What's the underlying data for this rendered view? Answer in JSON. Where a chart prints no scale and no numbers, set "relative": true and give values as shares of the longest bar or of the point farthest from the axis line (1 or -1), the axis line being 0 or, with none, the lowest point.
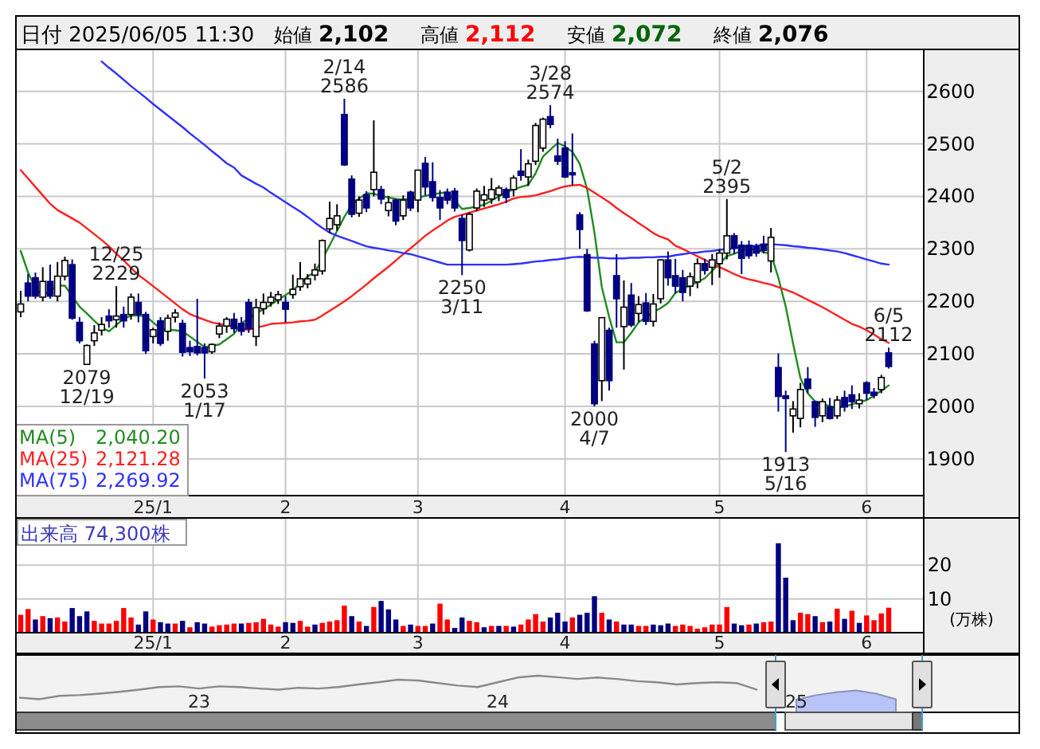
{
  "chart_data": [
    {
      "type": "candlestick",
      "title": "日付 2025/06/05 11:30",
      "annotations": [
        "始値 2,102",
        "高値 2,112",
        "安値 2,072",
        "終値 2,076",
        {
          "text": "12/25\n2229",
          "y": 2229
        },
        {
          "text": "2079\n12/19",
          "y": 2079
        },
        {
          "text": "2053\n1/17",
          "y": 2053
        },
        {
          "text": "2/14\n2586",
          "y": 2586
        },
        {
          "text": "2250\n3/11",
          "y": 2250
        },
        {
          "text": "3/28\n2574",
          "y": 2574
        },
        {
          "text": "2000\n4/7",
          "y": 2000
        },
        {
          "text": "5/2\n2395",
          "y": 2395
        },
        {
          "text": "1913\n5/16",
          "y": 1913
        },
        {
          "text": "6/5\n2112",
          "y": 2112
        }
      ],
      "categories": [
        null,
        null,
        null,
        null,
        null,
        null,
        null,
        null,
        null,
        null,
        null,
        null,
        null,
        null,
        null,
        null,
        null,
        null,
        "25/1",
        null,
        null,
        null,
        null,
        null,
        null,
        null,
        null,
        null,
        null,
        null,
        null,
        null,
        null,
        null,
        null,
        null,
        "2",
        null,
        null,
        null,
        null,
        null,
        null,
        null,
        null,
        null,
        null,
        null,
        null,
        null,
        null,
        null,
        null,
        null,
        "3",
        null,
        null,
        null,
        null,
        null,
        null,
        null,
        null,
        null,
        null,
        null,
        null,
        null,
        null,
        null,
        null,
        null,
        null,
        null,
        "4",
        null,
        null,
        null,
        null,
        null,
        null,
        null,
        null,
        null,
        null,
        null,
        null,
        null,
        null,
        null,
        null,
        null,
        null,
        null,
        null,
        "5",
        null,
        null,
        null,
        null,
        null,
        null,
        null,
        null,
        null,
        null,
        null,
        null,
        null,
        null,
        null,
        null,
        null,
        null,
        null,
        "6",
        null,
        null,
        null
      ],
      "ylim": [
        1830,
        2680
      ],
      "yticks": [
        1900,
        2000,
        2100,
        2200,
        2300,
        2400,
        2500,
        2600
      ],
      "grid": true,
      "legend": "bottom left",
      "ohlc": [
        [
          2180,
          2220,
          2170,
          2195
        ],
        [
          2235,
          2252,
          2200,
          2210
        ],
        [
          2245,
          2255,
          2205,
          2210
        ],
        [
          2208,
          2265,
          2200,
          2238
        ],
        [
          2238,
          2270,
          2205,
          2210
        ],
        [
          2210,
          2275,
          2200,
          2248
        ],
        [
          2248,
          2285,
          2240,
          2278
        ],
        [
          2270,
          2280,
          2165,
          2168
        ],
        [
          2160,
          2170,
          2120,
          2125
        ],
        [
          2080,
          2118,
          2079,
          2116
        ],
        [
          2125,
          2155,
          2115,
          2140
        ],
        [
          2145,
          2170,
          2135,
          2156
        ],
        [
          2172,
          2185,
          2150,
          2163
        ],
        [
          2165,
          2229,
          2150,
          2172
        ],
        [
          2175,
          2190,
          2150,
          2163
        ],
        [
          2175,
          2215,
          2165,
          2208
        ],
        [
          2198,
          2215,
          2160,
          2175
        ],
        [
          2175,
          2180,
          2100,
          2106
        ],
        [
          2133,
          2150,
          2120,
          2146
        ],
        [
          2163,
          2170,
          2115,
          2120
        ],
        [
          2143,
          2175,
          2125,
          2168
        ],
        [
          2170,
          2185,
          2160,
          2178
        ],
        [
          2158,
          2165,
          2095,
          2103
        ],
        [
          2112,
          2125,
          2096,
          2104
        ],
        [
          2114,
          2205,
          2097,
          2102
        ],
        [
          2112,
          2120,
          2053,
          2102
        ],
        [
          2104,
          2120,
          2100,
          2118
        ],
        [
          2138,
          2160,
          2130,
          2153
        ],
        [
          2153,
          2170,
          2140,
          2166
        ],
        [
          2166,
          2178,
          2140,
          2148
        ],
        [
          2158,
          2170,
          2135,
          2143
        ],
        [
          2198,
          2205,
          2140,
          2148
        ],
        [
          2133,
          2205,
          2115,
          2188
        ],
        [
          2186,
          2215,
          2175,
          2198
        ],
        [
          2198,
          2218,
          2190,
          2208
        ],
        [
          2203,
          2220,
          2195,
          2213
        ],
        [
          2198,
          2210,
          2160,
          2185
        ],
        [
          2213,
          2251,
          2205,
          2223
        ],
        [
          2228,
          2275,
          2220,
          2243
        ],
        [
          2233,
          2252,
          2225,
          2243
        ],
        [
          2250,
          2272,
          2240,
          2260
        ],
        [
          2258,
          2318,
          2251,
          2316
        ],
        [
          2338,
          2390,
          2330,
          2358
        ],
        [
          2346,
          2385,
          2335,
          2363
        ],
        [
          2556,
          2586,
          2458,
          2460
        ],
        [
          2433,
          2440,
          2360,
          2366
        ],
        [
          2368,
          2400,
          2361,
          2393
        ],
        [
          2403,
          2410,
          2370,
          2378
        ],
        [
          2413,
          2545,
          2400,
          2446
        ],
        [
          2413,
          2420,
          2385,
          2395
        ],
        [
          2373,
          2401,
          2362,
          2388
        ],
        [
          2393,
          2396,
          2345,
          2353
        ],
        [
          2363,
          2402,
          2355,
          2393
        ],
        [
          2408,
          2411,
          2372,
          2378
        ],
        [
          2393,
          2450,
          2370,
          2450
        ],
        [
          2463,
          2475,
          2402,
          2418
        ],
        [
          2428,
          2465,
          2390,
          2398
        ],
        [
          2398,
          2412,
          2355,
          2378
        ],
        [
          2408,
          2415,
          2385,
          2393
        ],
        [
          2410,
          2416,
          2371,
          2378
        ],
        [
          2358,
          2365,
          2250,
          2316
        ],
        [
          2298,
          2370,
          2295,
          2366
        ],
        [
          2378,
          2415,
          2372,
          2410
        ],
        [
          2393,
          2420,
          2380,
          2403
        ],
        [
          2395,
          2435,
          2386,
          2413
        ],
        [
          2403,
          2421,
          2391,
          2416
        ],
        [
          2413,
          2417,
          2387,
          2398
        ],
        [
          2413,
          2440,
          2400,
          2435
        ],
        [
          2448,
          2490,
          2430,
          2440
        ],
        [
          2437,
          2470,
          2420,
          2462
        ],
        [
          2467,
          2540,
          2460,
          2535
        ],
        [
          2492,
          2550,
          2485,
          2547
        ],
        [
          2552,
          2574,
          2530,
          2537
        ],
        [
          2477,
          2510,
          2460,
          2467
        ],
        [
          2492,
          2505,
          2435,
          2437
        ],
        [
          2445,
          2520,
          2421,
          2441
        ],
        [
          2365,
          2370,
          2300,
          2337
        ],
        [
          2289,
          2300,
          2180,
          2182
        ],
        [
          2119,
          2125,
          2000,
          2005
        ],
        [
          2049,
          2170,
          2010,
          2169
        ],
        [
          2145,
          2150,
          2030,
          2049
        ],
        [
          2249,
          2290,
          2150,
          2205
        ],
        [
          2152,
          2240,
          2070,
          2189
        ],
        [
          2212,
          2235,
          2151,
          2155
        ],
        [
          2177,
          2210,
          2160,
          2194
        ],
        [
          2197,
          2216,
          2155,
          2162
        ],
        [
          2162,
          2214,
          2152,
          2195
        ],
        [
          2205,
          2280,
          2196,
          2279
        ],
        [
          2279,
          2295,
          2230,
          2245
        ],
        [
          2249,
          2281,
          2215,
          2229
        ],
        [
          2245,
          2260,
          2200,
          2217
        ],
        [
          2229,
          2255,
          2210,
          2247
        ],
        [
          2237,
          2282,
          2225,
          2272
        ],
        [
          2272,
          2281,
          2251,
          2259
        ],
        [
          2265,
          2290,
          2231,
          2279
        ],
        [
          2272,
          2300,
          2245,
          2292
        ],
        [
          2292,
          2395,
          2280,
          2325
        ],
        [
          2325,
          2330,
          2290,
          2302
        ],
        [
          2307,
          2315,
          2252,
          2282
        ],
        [
          2307,
          2316,
          2281,
          2287
        ],
        [
          2305,
          2310,
          2285,
          2292
        ],
        [
          2309,
          2325,
          2291,
          2297
        ],
        [
          2277,
          2340,
          2255,
          2322
        ],
        [
          2074,
          2101,
          1990,
          2019
        ],
        [
          2020,
          2030,
          1913,
          2015
        ],
        [
          1982,
          2010,
          1950,
          1995
        ],
        [
          1977,
          2045,
          1960,
          2032
        ],
        [
          2052,
          2075,
          2025,
          2034
        ],
        [
          2009,
          2011,
          1961,
          1979
        ],
        [
          1982,
          2015,
          1970,
          2009
        ],
        [
          1999,
          2016,
          1975,
          1977
        ],
        [
          1982,
          2020,
          1976,
          2012
        ],
        [
          2017,
          2030,
          1990,
          1999
        ],
        [
          2022,
          2040,
          1995,
          2009
        ],
        [
          2005,
          2025,
          1996,
          2012
        ],
        [
          2045,
          2048,
          2012,
          2025
        ],
        [
          2027,
          2035,
          2015,
          2021
        ],
        [
          2032,
          2060,
          2025,
          2055
        ],
        [
          2102,
          2112,
          2072,
          2076
        ]
      ],
      "series": [
        {
          "type": "line",
          "name": "MA(5) 2,040.20",
          "color": "#228b22",
          "values": [
            2296,
            2255,
            2225,
            2212,
            2220,
            2230,
            2230,
            2210,
            2190,
            2177,
            2163,
            2150,
            2143,
            2155,
            2167,
            2173,
            2173,
            2172,
            2160,
            2148,
            2146,
            2145,
            2143,
            2133,
            2123,
            2113,
            2115,
            2118,
            2128,
            2138,
            2158,
            2168,
            2177,
            2185,
            2194,
            2203,
            2212,
            2221,
            2234,
            2247,
            2256,
            2280,
            2307,
            2334,
            2361,
            2384,
            2396,
            2406,
            2405,
            2401,
            2398,
            2395,
            2394,
            2396,
            2398,
            2401,
            2404,
            2406,
            2408,
            2392,
            2376,
            2378,
            2381,
            2384,
            2392,
            2400,
            2408,
            2413,
            2418,
            2422,
            2444,
            2476,
            2489,
            2502,
            2495,
            2485,
            2462,
            2414,
            2331,
            2227,
            2170,
            2122,
            2122,
            2140,
            2160,
            2170,
            2180,
            2187,
            2197,
            2216,
            2224,
            2230,
            2237,
            2244,
            2258,
            2272,
            2286,
            2291,
            2296,
            2301,
            2298,
            2294,
            2290,
            2245,
            2190,
            2120,
            2054,
            2025,
            2009,
            2005,
            2000,
            1997,
            2000,
            2004,
            2008,
            2012,
            2020,
            2030,
            2040
          ]
        },
        {
          "type": "line",
          "name": "MA(25) 2,121.28",
          "color": "#ff2020",
          "values": [
            2450,
            2434,
            2418,
            2402,
            2386,
            2374,
            2366,
            2358,
            2350,
            2339,
            2328,
            2317,
            2305,
            2291,
            2278,
            2264,
            2250,
            2240,
            2229,
            2218,
            2207,
            2196,
            2185,
            2176,
            2170,
            2165,
            2160,
            2157,
            2155,
            2152,
            2147,
            2146,
            2150,
            2153,
            2157,
            2158,
            2159,
            2160,
            2162,
            2163,
            2165,
            2173,
            2182,
            2191,
            2200,
            2210,
            2221,
            2232,
            2244,
            2255,
            2266,
            2278,
            2290,
            2301,
            2313,
            2325,
            2335,
            2344,
            2354,
            2361,
            2365,
            2369,
            2373,
            2377,
            2381,
            2385,
            2390,
            2396,
            2399,
            2400,
            2402,
            2406,
            2410,
            2415,
            2419,
            2421,
            2422,
            2416,
            2407,
            2398,
            2389,
            2378,
            2368,
            2359,
            2349,
            2340,
            2330,
            2323,
            2318,
            2306,
            2300,
            2293,
            2286,
            2279,
            2272,
            2265,
            2259,
            2252,
            2246,
            2242,
            2239,
            2235,
            2232,
            2227,
            2222,
            2217,
            2210,
            2203,
            2196,
            2189,
            2181,
            2173,
            2165,
            2157,
            2152,
            2145,
            2137,
            2128,
            2121
          ]
        },
        {
          "type": "line",
          "name": "MA(75) 2,269.92",
          "color": "#3030ff",
          "values": [
            null,
            null,
            null,
            null,
            null,
            null,
            null,
            null,
            null,
            null,
            null,
            2657,
            2645,
            2634,
            2622,
            2610,
            2599,
            2588,
            2576,
            2565,
            2554,
            2543,
            2532,
            2520,
            2509,
            2498,
            2486,
            2475,
            2463,
            2455,
            2440,
            2432,
            2424,
            2417,
            2407,
            2398,
            2389,
            2380,
            2371,
            2361,
            2350,
            2340,
            2331,
            2325,
            2320,
            2315,
            2310,
            2305,
            2302,
            2300,
            2297,
            2295,
            2292,
            2290,
            2286,
            2282,
            2278,
            2274,
            2270,
            2270,
            2270,
            2270,
            2270,
            2270,
            2270,
            2270,
            2270,
            2271,
            2272,
            2274,
            2276,
            2277,
            2279,
            2280,
            2282,
            2284,
            2285,
            2284,
            2283,
            2283,
            2282,
            2282,
            2282,
            2283,
            2283,
            2284,
            2284,
            2285,
            2285,
            2288,
            2290,
            2292,
            2293,
            2295,
            2296,
            2298,
            2300,
            2301,
            2303,
            2305,
            2306,
            2308,
            2309,
            2308,
            2307,
            2305,
            2304,
            2302,
            2301,
            2299,
            2297,
            2295,
            2292,
            2288,
            2284,
            2280,
            2276,
            2272,
            2270
          ]
        }
      ]
    },
    {
      "type": "bar",
      "title": "出来高 74,300株",
      "ylabel": "(万株)",
      "categories": [
        null,
        null,
        null,
        null,
        null,
        null,
        null,
        null,
        null,
        null,
        null,
        null,
        null,
        null,
        null,
        null,
        null,
        null,
        "25/1",
        null,
        null,
        null,
        null,
        null,
        null,
        null,
        null,
        null,
        null,
        null,
        null,
        null,
        null,
        null,
        null,
        null,
        "2",
        null,
        null,
        null,
        null,
        null,
        null,
        null,
        null,
        null,
        null,
        null,
        null,
        null,
        null,
        null,
        null,
        null,
        "3",
        null,
        null,
        null,
        null,
        null,
        null,
        null,
        null,
        null,
        null,
        null,
        null,
        null,
        null,
        null,
        null,
        null,
        null,
        null,
        "4",
        null,
        null,
        null,
        null,
        null,
        null,
        null,
        null,
        null,
        null,
        null,
        null,
        null,
        null,
        null,
        null,
        null,
        null,
        null,
        null,
        "5",
        null,
        null,
        null,
        null,
        null,
        null,
        null,
        null,
        null,
        null,
        null,
        null,
        null,
        null,
        null,
        null,
        null,
        null,
        null,
        "6",
        null,
        null,
        null
      ],
      "ylim": [
        0,
        34
      ],
      "yticks": [
        10,
        20
      ],
      "grid": true,
      "series": [
        {
          "color": "#ff0000",
          "values": [
            5.3,
            7,
            null,
            4.9,
            null,
            4.5,
            3.3,
            null,
            null,
            null,
            3.5,
            2.7,
            2.7,
            3.5,
            7.3,
            4.5,
            null,
            null,
            3.9,
            null,
            null,
            2.7,
            null,
            1.6,
            null,
            null,
            1.8,
            2.2,
            2.4,
            2.7,
            null,
            2.9,
            3.1,
            4.1,
            2.4,
            1.8,
            null,
            null,
            3.5,
            1.8,
            null,
            2.9,
            3.3,
            3.7,
            8,
            null,
            3.3,
            null,
            7.6,
            null,
            null,
            null,
            2,
            null,
            2,
            2,
            null,
            8.6,
            3.9,
            null,
            null,
            3.5,
            3.1,
            null,
            2,
            null,
            2,
            null,
            2.4,
            3.9,
            5.5,
            3.3,
            null,
            null,
            null,
            4.5,
            null,
            null,
            null,
            5.9,
            null,
            3.3,
            null,
            null,
            2,
            2,
            null,
            null,
            null,
            2,
            2.4,
            2,
            1.2,
            1.6,
            2.4,
            2.4,
            7.6,
            null,
            null,
            2.4,
            null,
            3.1,
            3.3,
            null,
            null,
            null,
            5.9,
            5.5,
            null,
            3.1,
            null,
            7.1,
            null,
            6.5,
            null,
            5.1,
            3.7,
            5.7,
            7.4
          ]
        },
        {
          "color": "#000080",
          "values": [
            null,
            null,
            3.9,
            null,
            4.3,
            null,
            null,
            7.3,
            4.9,
            6.3,
            null,
            null,
            null,
            null,
            null,
            null,
            2.4,
            6.3,
            null,
            3.1,
            2.7,
            null,
            3.5,
            null,
            3.1,
            2.7,
            null,
            null,
            null,
            null,
            2.7,
            null,
            null,
            null,
            null,
            null,
            3.1,
            2.9,
            null,
            null,
            2.4,
            null,
            null,
            null,
            null,
            4.9,
            null,
            2,
            null,
            9.4,
            6.9,
            3.9,
            null,
            2.4,
            null,
            null,
            2.7,
            null,
            null,
            1.4,
            4.5,
            null,
            null,
            1.6,
            null,
            2,
            null,
            1.8,
            null,
            null,
            null,
            null,
            4.5,
            5.9,
            3.3,
            null,
            5.3,
            5.9,
            10.8,
            null,
            3.9,
            null,
            2.4,
            2.4,
            null,
            null,
            2.4,
            2.2,
            2.7,
            null,
            null,
            null,
            null,
            null,
            null,
            null,
            null,
            2.7,
            2.2,
            null,
            2.7,
            null,
            null,
            26.5,
            16.3,
            3.7,
            null,
            null,
            4.9,
            null,
            3.3,
            null,
            4.1,
            null,
            2.9,
            null,
            null,
            null,
            null
          ]
        }
      ]
    },
    {
      "type": "line",
      "relative": true,
      "categories": [
        null,
        null,
        null,
        null,
        null,
        null,
        null,
        null,
        null,
        "23",
        null,
        null,
        null,
        null,
        null,
        null,
        null,
        null,
        null,
        null,
        null,
        null,
        null,
        null,
        "24",
        null,
        null,
        null,
        null,
        null,
        null,
        null,
        null,
        null,
        null,
        null,
        null,
        null,
        null,
        "25",
        null,
        null,
        null,
        null,
        null
      ],
      "series": [
        {
          "type": "line",
          "color": "#8a8a8a",
          "values": [
            0.4,
            0.36,
            0.45,
            0.47,
            0.51,
            0.56,
            0.62,
            0.69,
            0.71,
            0.65,
            0.71,
            0.69,
            0.65,
            0.62,
            0.67,
            0.65,
            0.69,
            0.76,
            0.82,
            0.89,
            0.87,
            0.8,
            0.73,
            0.69,
            0.82,
            0.95,
            1,
            0.96,
            0.91,
            0.95,
            0.91,
            0.85,
            0.82,
            0.76,
            0.8,
            0.82,
            0.8,
            0.62,
            null,
            null,
            null,
            null,
            null,
            null,
            null
          ]
        },
        {
          "type": "area",
          "color": "#b8c4f8",
          "values": [
            null,
            null,
            null,
            null,
            null,
            null,
            null,
            null,
            null,
            null,
            null,
            null,
            null,
            null,
            null,
            null,
            null,
            null,
            null,
            null,
            null,
            null,
            null,
            null,
            null,
            null,
            null,
            null,
            null,
            null,
            null,
            null,
            null,
            null,
            null,
            null,
            null,
            null,
            null,
            0.35,
            0.47,
            0.55,
            0.6,
            0.51,
            0.36
          ]
        }
      ]
    }
  ]
}
